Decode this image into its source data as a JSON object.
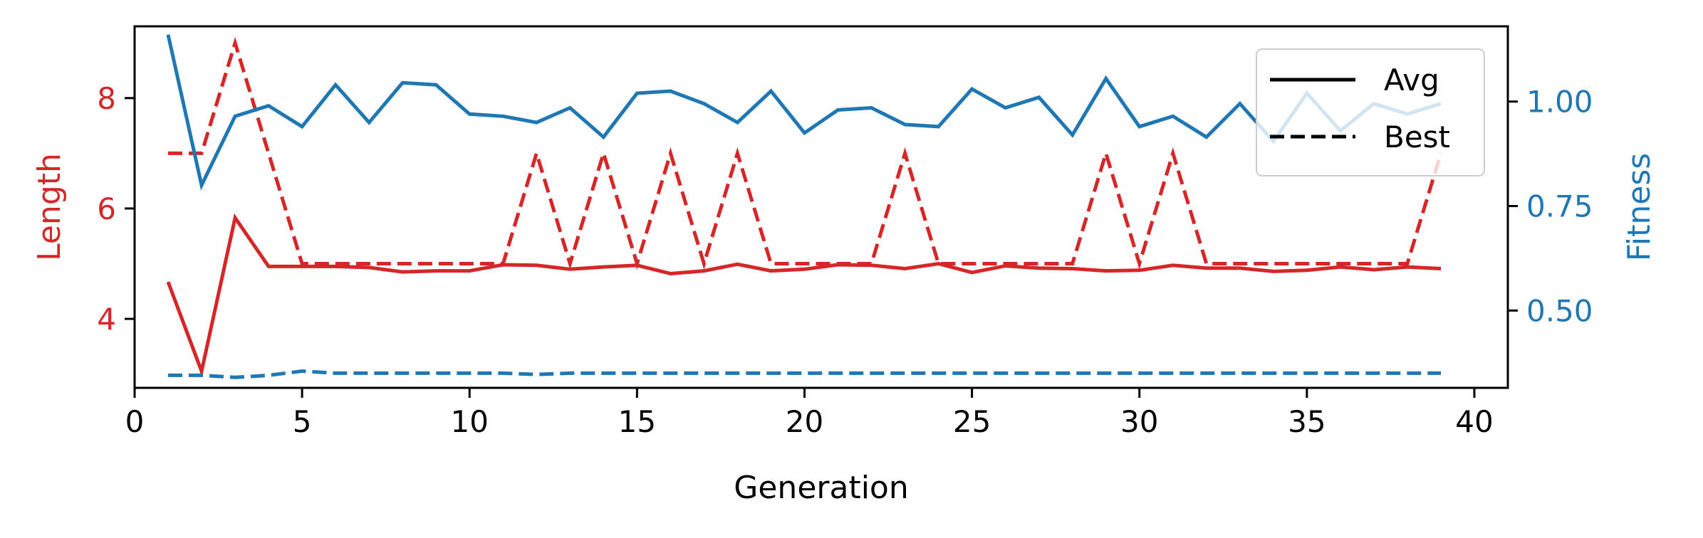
{
  "chart_data": {
    "type": "line",
    "xlabel": "Generation",
    "ylabel_left": "Length",
    "ylabel_right": "Fitness",
    "xlim": [
      0,
      41
    ],
    "ylim_left": [
      2.75,
      9.3
    ],
    "ylim_right": [
      0.315,
      1.18
    ],
    "x_ticks": [
      0,
      5,
      10,
      15,
      20,
      25,
      30,
      35,
      40
    ],
    "y_left_ticks": [
      4,
      6,
      8
    ],
    "y_right_ticks": [
      "0.50",
      "0.75",
      "1.00"
    ],
    "legend_placement": "top-right",
    "grid": false,
    "colors": {
      "length": "#d62728",
      "fitness": "#1f77b4",
      "legend_line": "#000000"
    },
    "legend": [
      {
        "label": "Avg",
        "style": "solid"
      },
      {
        "label": "Best",
        "style": "dashed"
      }
    ],
    "x": [
      1,
      2,
      3,
      4,
      5,
      6,
      7,
      8,
      9,
      10,
      11,
      12,
      13,
      14,
      15,
      16,
      17,
      18,
      19,
      20,
      21,
      22,
      23,
      24,
      25,
      26,
      27,
      28,
      29,
      30,
      31,
      32,
      33,
      34,
      35,
      36,
      37,
      38,
      39
    ],
    "series": [
      {
        "name": "Avg",
        "axis": "left",
        "style": "solid",
        "color": "#d62728",
        "values": [
          4.67,
          3.05,
          5.83,
          4.95,
          4.95,
          4.95,
          4.93,
          4.85,
          4.87,
          4.87,
          4.98,
          4.97,
          4.9,
          4.94,
          4.97,
          4.82,
          4.87,
          4.99,
          4.87,
          4.9,
          4.98,
          4.97,
          4.91,
          5.0,
          4.84,
          4.96,
          4.92,
          4.91,
          4.87,
          4.88,
          4.97,
          4.92,
          4.92,
          4.86,
          4.88,
          4.94,
          4.89,
          4.94,
          4.91
        ]
      },
      {
        "name": "Best",
        "axis": "left",
        "style": "dashed",
        "color": "#d62728",
        "values": [
          7,
          7,
          9,
          7,
          5,
          5,
          5,
          5,
          5,
          5,
          5,
          7,
          5,
          7,
          5,
          7,
          5,
          7,
          5,
          5,
          5,
          5,
          7,
          5,
          5,
          5,
          5,
          5,
          7,
          5,
          7,
          5,
          5,
          5,
          5,
          5,
          5,
          5,
          7
        ]
      },
      {
        "name": "Avg",
        "axis": "right",
        "style": "solid",
        "color": "#1f77b4",
        "values": [
          1.16,
          0.8,
          0.965,
          0.99,
          0.94,
          1.04,
          0.95,
          1.045,
          1.04,
          0.97,
          0.965,
          0.95,
          0.985,
          0.915,
          1.02,
          1.025,
          0.995,
          0.95,
          1.025,
          0.925,
          0.98,
          0.985,
          0.945,
          0.94,
          1.03,
          0.985,
          1.01,
          0.92,
          1.055,
          0.94,
          0.965,
          0.915,
          0.995,
          0.905,
          1.02,
          0.93,
          0.995,
          0.97,
          0.995
        ]
      },
      {
        "name": "Best",
        "axis": "right",
        "style": "dashed",
        "color": "#1f77b4",
        "values": [
          0.345,
          0.345,
          0.34,
          0.345,
          0.355,
          0.35,
          0.35,
          0.35,
          0.35,
          0.35,
          0.35,
          0.347,
          0.35,
          0.35,
          0.35,
          0.35,
          0.35,
          0.35,
          0.35,
          0.35,
          0.35,
          0.35,
          0.35,
          0.35,
          0.35,
          0.35,
          0.35,
          0.35,
          0.35,
          0.35,
          0.35,
          0.35,
          0.35,
          0.35,
          0.35,
          0.35,
          0.35,
          0.35,
          0.35
        ]
      }
    ]
  }
}
